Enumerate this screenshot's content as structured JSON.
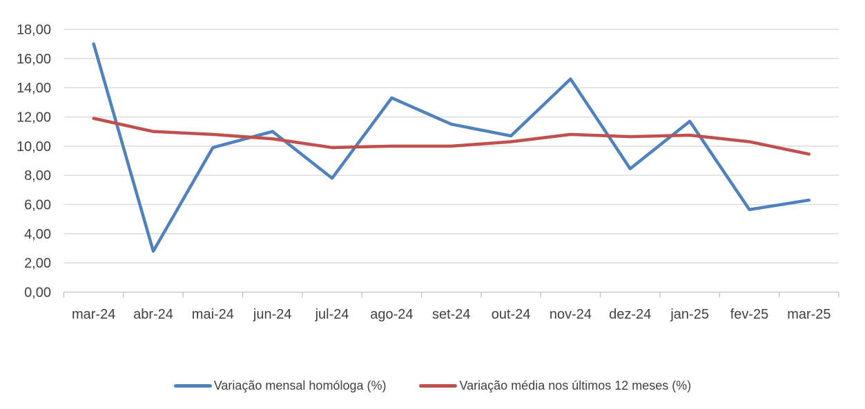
{
  "chart_data": {
    "type": "line",
    "title": "",
    "xlabel": "",
    "ylabel": "",
    "categories": [
      "mar-24",
      "abr-24",
      "mai-24",
      "jun-24",
      "jul-24",
      "ago-24",
      "set-24",
      "out-24",
      "nov-24",
      "dez-24",
      "jan-25",
      "fev-25",
      "mar-25"
    ],
    "series": [
      {
        "name": "Variação mensal homóloga (%)",
        "color": "#4F81BD",
        "values": [
          17.0,
          2.8,
          9.9,
          11.0,
          7.8,
          13.3,
          11.5,
          10.7,
          14.6,
          8.45,
          11.7,
          5.65,
          6.3
        ]
      },
      {
        "name": "Variação média nos últimos 12 meses (%)",
        "color": "#C0504D",
        "values": [
          11.9,
          11.0,
          10.8,
          10.5,
          9.9,
          10.0,
          10.0,
          10.3,
          10.8,
          10.65,
          10.75,
          10.3,
          9.45
        ]
      }
    ],
    "ylim": [
      0,
      18
    ],
    "yticks": [
      0,
      2,
      4,
      6,
      8,
      10,
      12,
      14,
      16,
      18
    ],
    "ytick_labels": [
      "0,00",
      "2,00",
      "4,00",
      "6,00",
      "8,00",
      "10,00",
      "12,00",
      "14,00",
      "16,00",
      "18,00"
    ],
    "grid": true,
    "legend_position": "bottom"
  },
  "colors": {
    "gridline": "#D9D9D9",
    "axis_line": "#BFBFBF",
    "tick_text": "#404040",
    "background": "#FFFFFF",
    "series_blue": "#4F81BD",
    "series_red": "#C0504D"
  }
}
